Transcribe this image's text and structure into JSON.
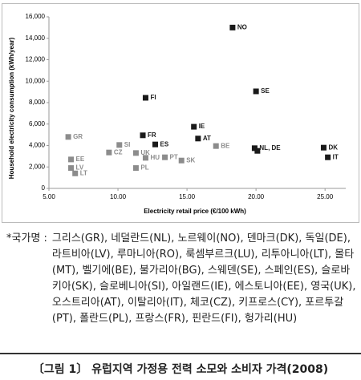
{
  "chart_data": {
    "type": "scatter",
    "x_label": "Electricity retail price (€/100 kWh)",
    "y_label": "Household electricity consumption (kWh/year)",
    "labels": [
      "NO",
      "SE",
      "FI",
      "IE",
      "FR",
      "AT",
      "ES",
      "BE",
      "DK",
      "NL, DE",
      null,
      "IT",
      "GR",
      "SI",
      "CZ",
      "UK",
      "HU",
      "PT",
      "SK",
      "EE",
      "PL",
      "LV",
      "LT"
    ],
    "x": [
      18.3,
      20.0,
      12.0,
      15.5,
      11.8,
      15.8,
      12.7,
      17.1,
      24.9,
      19.9,
      20.1,
      25.2,
      6.4,
      10.1,
      9.35,
      11.3,
      12.0,
      13.4,
      14.6,
      6.6,
      11.3,
      6.6,
      6.9
    ],
    "values": [
      15000,
      9050,
      8450,
      5750,
      4950,
      4650,
      4100,
      3950,
      3800,
      3750,
      3500,
      2900,
      4800,
      4050,
      3350,
      3300,
      2850,
      2900,
      2600,
      2700,
      1900,
      1900,
      1400
    ],
    "colors": [
      "#1a1a1a",
      "#1a1a1a",
      "#1a1a1a",
      "#1a1a1a",
      "#1a1a1a",
      "#1a1a1a",
      "#1a1a1a",
      "#8c8c8c",
      "#1a1a1a",
      "#1a1a1a",
      "#1a1a1a",
      "#1a1a1a",
      "#8c8c8c",
      "#8c8c8c",
      "#8c8c8c",
      "#8c8c8c",
      "#8c8c8c",
      "#8c8c8c",
      "#8c8c8c",
      "#8c8c8c",
      "#8c8c8c",
      "#8c8c8c",
      "#8c8c8c"
    ],
    "xlim": [
      5,
      26.5
    ],
    "xticks": [
      {
        "value": 5,
        "label": "5.00"
      },
      {
        "value": 10,
        "label": "10.00"
      },
      {
        "value": 15,
        "label": "15.00"
      },
      {
        "value": 20,
        "label": "20.00"
      },
      {
        "value": 25,
        "label": "25.00"
      }
    ],
    "ylim": [
      0,
      16000
    ],
    "yticks": [
      0,
      {
        "value": 2000,
        "label": "2,000"
      },
      {
        "value": 4000,
        "label": "4,000"
      },
      {
        "value": 6000,
        "label": "6,000"
      },
      {
        "value": 8000,
        "label": "8,000"
      },
      {
        "value": 10000,
        "label": "10,000"
      },
      {
        "value": 12000,
        "label": "12,000"
      },
      {
        "value": 14000,
        "label": "14,000"
      },
      {
        "value": 16000,
        "label": "16,000"
      }
    ]
  },
  "note": {
    "label": "*국가명 :",
    "text": "그리스(GR), 네덜란드(NL), 노르웨이(NO), 덴마크(DK), 독일(DE), 라트비아(LV), 루마니아(RO), 룩셈부르크(LU), 리투아니아(LT), 몰타(MT), 벨기에(BE), 불가리아(BG), 스웨덴(SE), 스페인(ES), 슬로바키아(SK), 슬로베니아(SI), 아일랜드(IE), 에스토니아(EE), 영국(UK), 오스트리아(AT), 이탈리아(IT), 체코(CZ), 키프로스(CY), 포르투갈(PT), 폴란드(PL), 프랑스(FR), 핀란드(FI), 헝가리(HU)"
  },
  "caption": "〔그림 1〕 유럽지역 가정용 전력 소모와 소비자 가격(2008)"
}
